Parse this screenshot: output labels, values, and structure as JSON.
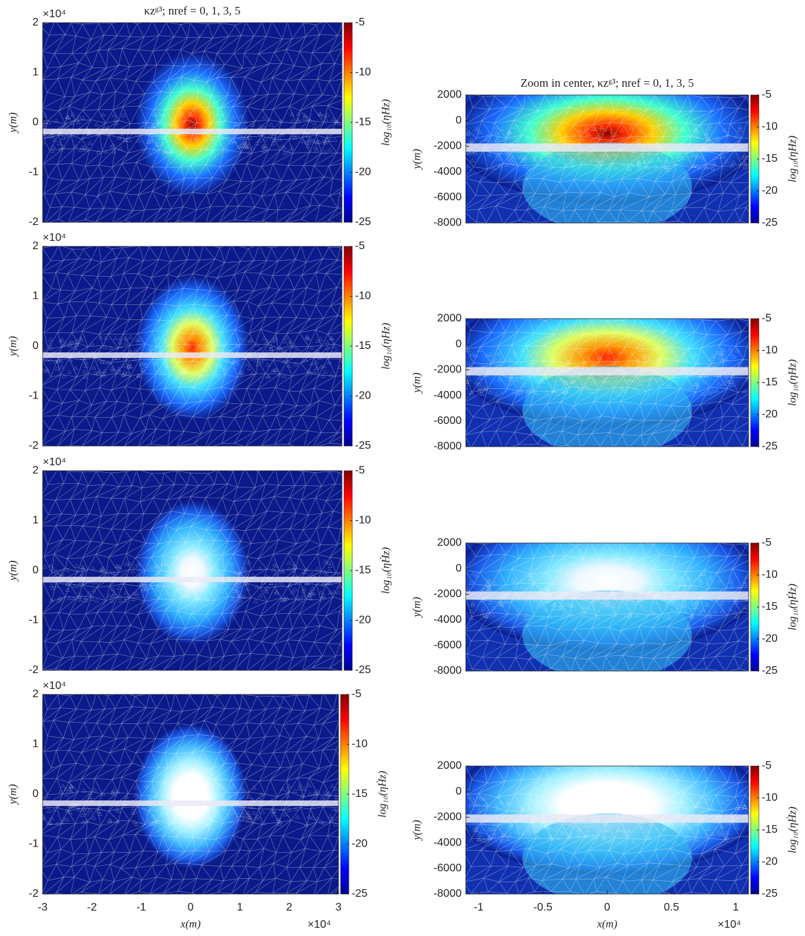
{
  "chart_data": [
    {
      "type": "mesh-heatmap",
      "title": "κzᵍ³; nref = 0, 1, 3, 5",
      "ylabel": "y(m)",
      "y_multiplier": "×10⁴",
      "xlim": [
        -3,
        3
      ],
      "ylim": [
        -2,
        2
      ],
      "yticks": [
        -2,
        -1,
        0,
        1,
        2
      ],
      "clim": [
        -25,
        -5
      ],
      "cticks": [
        -25,
        -20,
        -15,
        -10,
        -5
      ],
      "clabel": "log₁₀(ηHz)"
    },
    {
      "type": "mesh-heatmap",
      "title": "Zoom in center, κzᵍ³; nref = 0, 1, 3, 5",
      "ylabel": "y(m)",
      "xlim": [
        -1.1,
        1.1
      ],
      "ylim": [
        -8000,
        2000
      ],
      "yticks": [
        -8000,
        -6000,
        -4000,
        -2000,
        0,
        2000
      ],
      "clim": [
        -25,
        -5
      ],
      "cticks": [
        -25,
        -20,
        -15,
        -10,
        -5
      ],
      "clabel": "log₁₀(ηHz)"
    },
    {
      "type": "mesh-heatmap",
      "ylabel": "y(m)",
      "y_multiplier": "×10⁴",
      "xlim": [
        -3,
        3
      ],
      "ylim": [
        -2,
        2
      ],
      "yticks": [
        -2,
        -1,
        0,
        1,
        2
      ],
      "clim": [
        -25,
        -5
      ],
      "cticks": [
        -25,
        -20,
        -15,
        -10,
        -5
      ],
      "clabel": "log₁₀(ηHz)"
    },
    {
      "type": "mesh-heatmap",
      "ylabel": "y(m)",
      "xlim": [
        -1.1,
        1.1
      ],
      "ylim": [
        -8000,
        2000
      ],
      "yticks": [
        -8000,
        -6000,
        -4000,
        -2000,
        0,
        2000
      ],
      "clim": [
        -25,
        -5
      ],
      "cticks": [
        -25,
        -20,
        -15,
        -10,
        -5
      ],
      "clabel": "log₁₀(ηHz)"
    },
    {
      "type": "mesh-heatmap",
      "ylabel": "y(m)",
      "y_multiplier": "×10⁴",
      "xlim": [
        -3,
        3
      ],
      "ylim": [
        -2,
        2
      ],
      "yticks": [
        -2,
        -1,
        0,
        1,
        2
      ],
      "clim": [
        -25,
        -5
      ],
      "cticks": [
        -25,
        -20,
        -15,
        -10,
        -5
      ],
      "clabel": "log₁₀(ηḢz)"
    },
    {
      "type": "mesh-heatmap",
      "ylabel": "y(m)",
      "xlim": [
        -1.1,
        1.1
      ],
      "ylim": [
        -8000,
        2000
      ],
      "yticks": [
        -8000,
        -6000,
        -4000,
        -2000,
        0,
        2000
      ],
      "clim": [
        -25,
        -5
      ],
      "cticks": [
        -25,
        -20,
        -15,
        -10,
        -5
      ],
      "clabel": "log₁₀(ηḢz)"
    },
    {
      "type": "mesh-heatmap",
      "ylabel": "y(m)",
      "y_multiplier": "×10⁴",
      "xlabel": "x(m)",
      "x_multiplier": "×10⁴",
      "xlim": [
        -3,
        3
      ],
      "ylim": [
        -2,
        2
      ],
      "xticks": [
        -3,
        -2,
        -1,
        0,
        1,
        2,
        3
      ],
      "yticks": [
        -2,
        -1,
        0,
        1,
        2
      ],
      "clim": [
        -25,
        -5
      ],
      "cticks": [
        -25,
        -20,
        -15,
        -10,
        -5
      ],
      "clabel": "log₁₀(ηḢz)"
    },
    {
      "type": "mesh-heatmap",
      "ylabel": "y(m)",
      "xlabel": "x(m)",
      "x_multiplier": "×10⁴",
      "xlim": [
        -1.1,
        1.1
      ],
      "ylim": [
        -8000,
        2000
      ],
      "xticks": [
        -1,
        -0.5,
        0,
        0.5,
        1
      ],
      "yticks": [
        -8000,
        -6000,
        -4000,
        -2000,
        0,
        2000
      ],
      "clim": [
        -25,
        -5
      ],
      "cticks": [
        -25,
        -20,
        -15,
        -10,
        -5
      ],
      "clabel": "log₁₀(ηḢz)"
    }
  ]
}
